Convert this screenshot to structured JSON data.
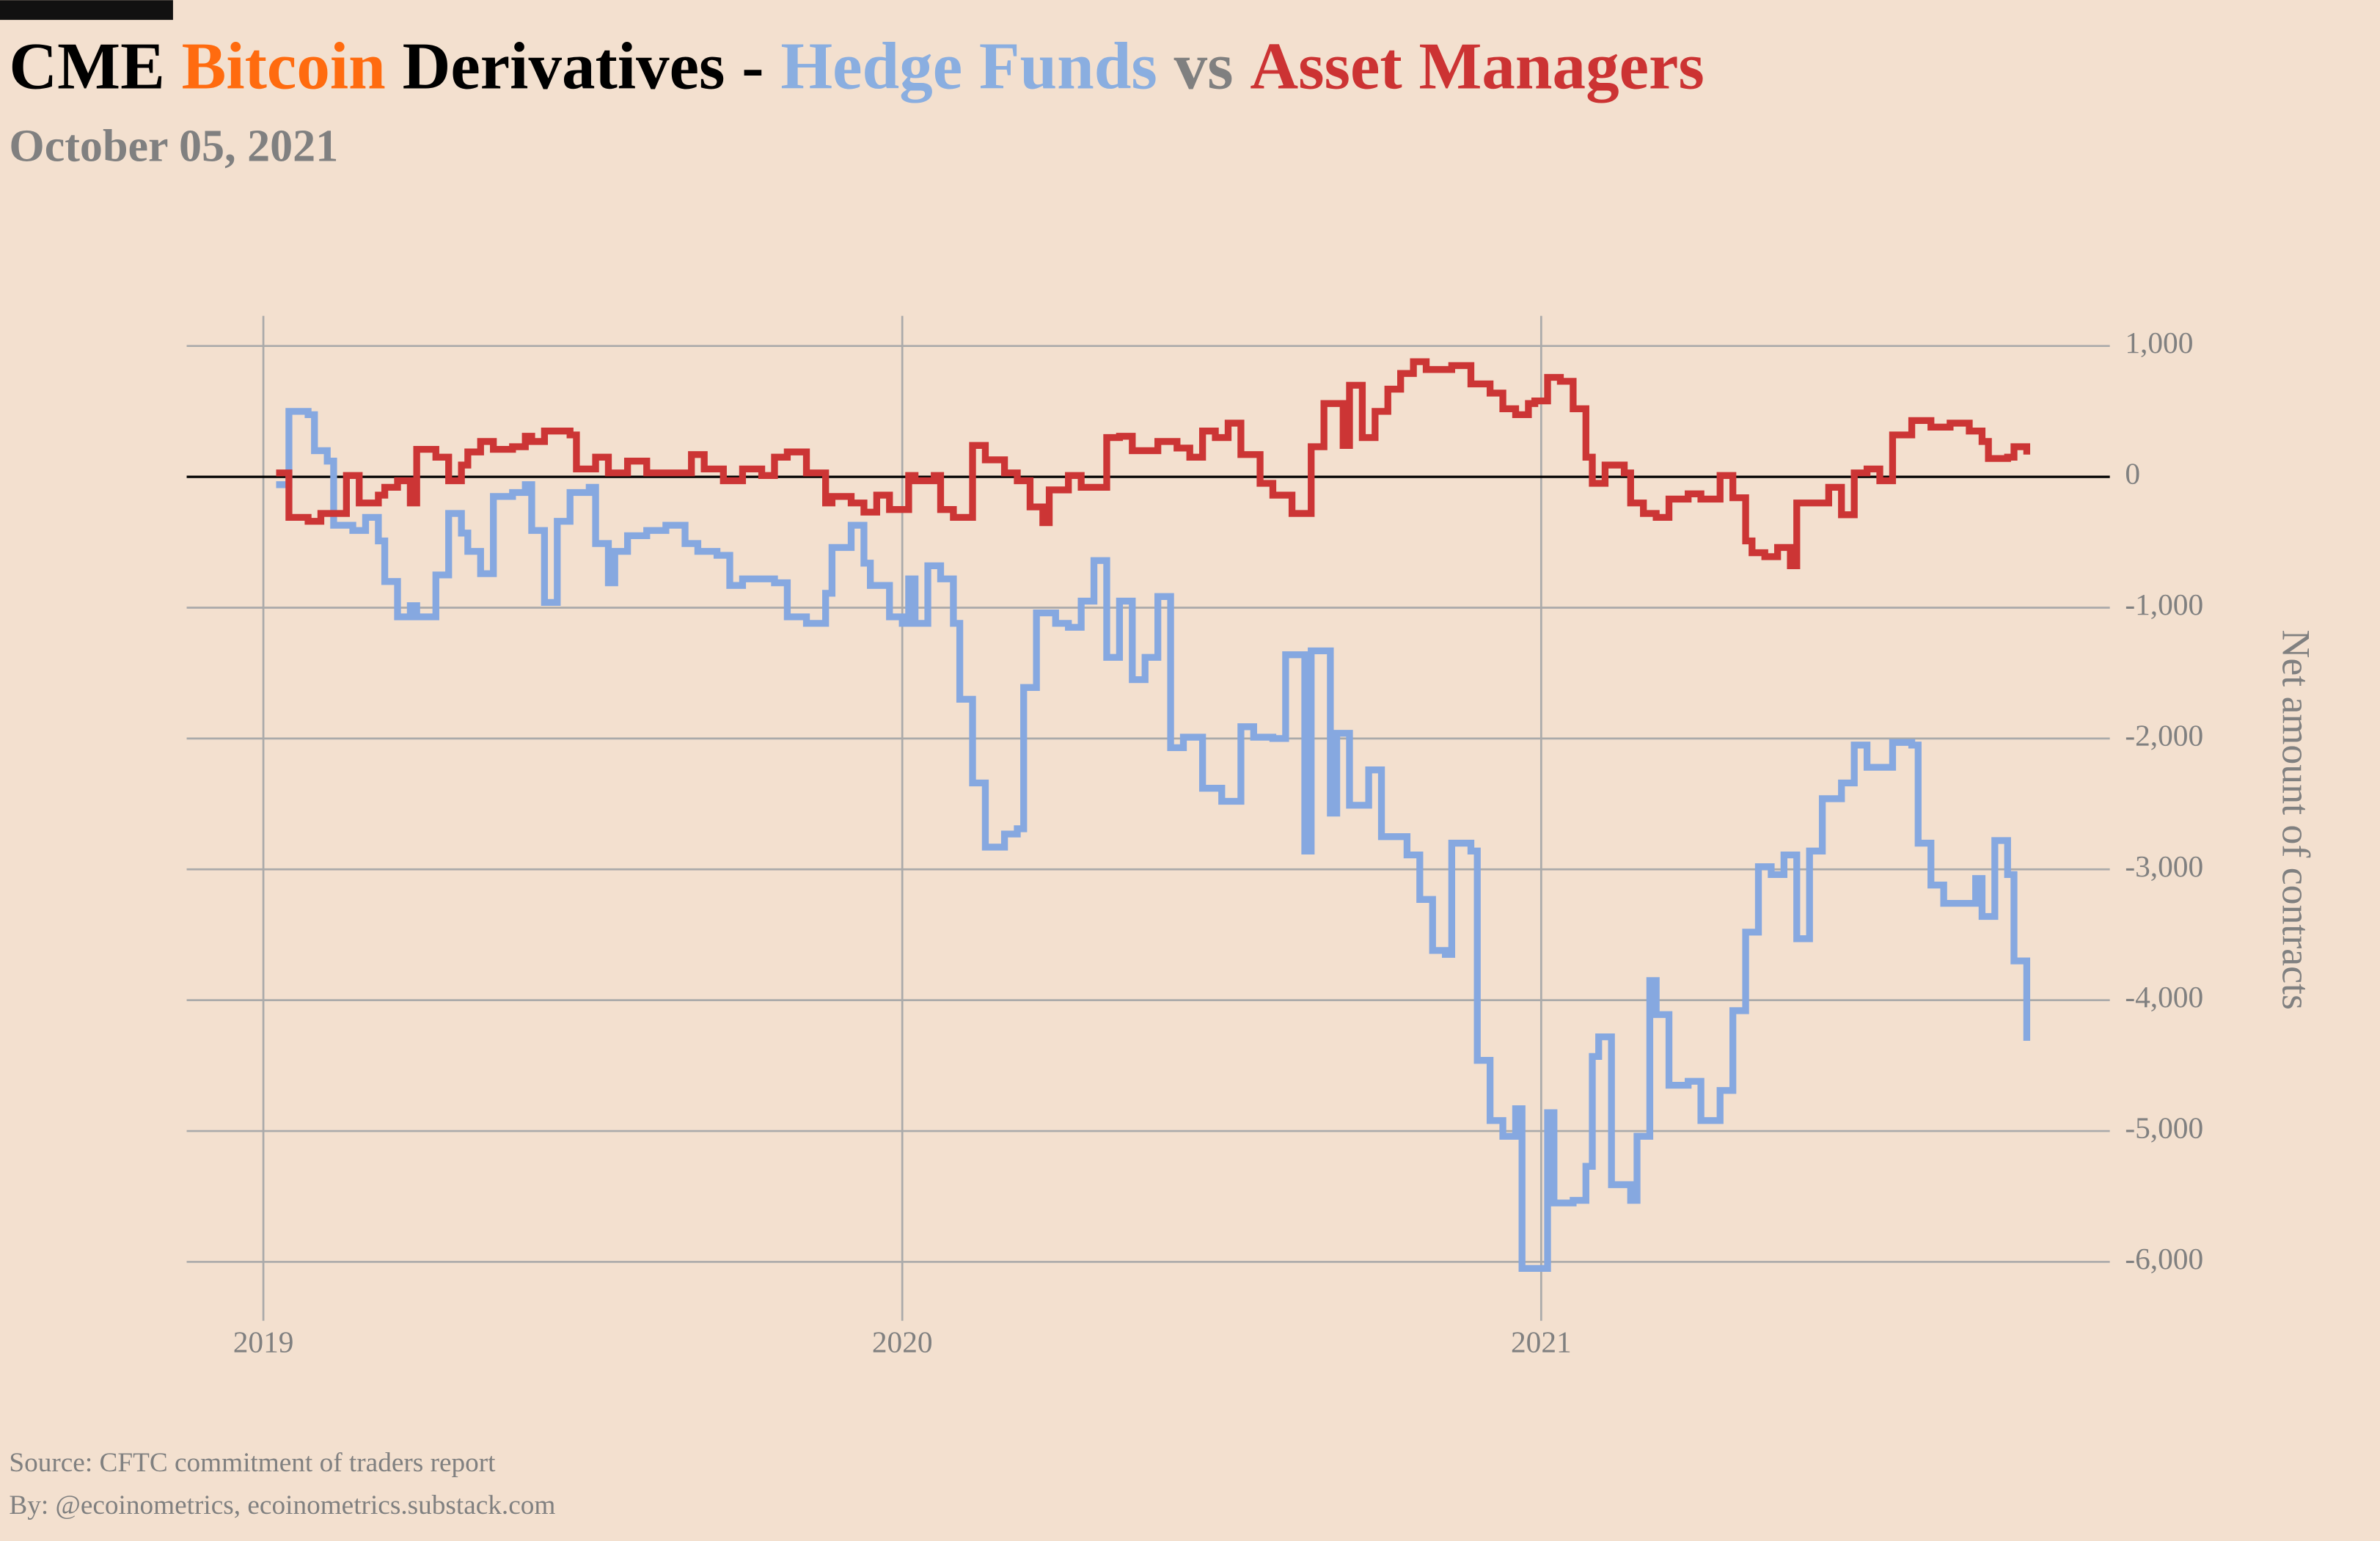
{
  "chart_data": {
    "type": "line",
    "title": [
      {
        "text": "CME",
        "color": "#000000"
      },
      {
        "text": "Bitcoin",
        "color": "#ff6b0f"
      },
      {
        "text": "Derivatives -",
        "color": "#000000"
      },
      {
        "text": "Hedge Funds",
        "color": "#8aaee0"
      },
      {
        "text": "vs",
        "color": "#808080"
      },
      {
        "text": "Asset Managers",
        "color": "#cc3333"
      }
    ],
    "subtitle": "October 05, 2021",
    "y_label": "Net amount of contracts",
    "source": "Source: CFTC commitment of traders report",
    "byline": "By: @ecoinometrics, ecoinometrics.substack.com",
    "step": true,
    "grid": true,
    "xlim": [
      2018.88,
      2021.89
    ],
    "xticks": [
      2019,
      2020,
      2021
    ],
    "ylim": [
      -6450,
      1230
    ],
    "yticks": [
      {
        "value": 1000,
        "label": "1,000"
      },
      0,
      {
        "value": -1000,
        "label": "-1,000"
      },
      {
        "value": -2000,
        "label": "-2,000"
      },
      {
        "value": -3000,
        "label": "-3,000"
      },
      {
        "value": -4000,
        "label": "-4,000"
      },
      {
        "value": -5000,
        "label": "-5,000"
      },
      {
        "value": -6000,
        "label": "-6,000"
      }
    ],
    "series": [
      {
        "name": "Hedge Funds",
        "color": "#86a8e0",
        "x": [
          2019.02,
          2019.04,
          2019.07,
          2019.08,
          2019.1,
          2019.11,
          2019.14,
          2019.16,
          2019.18,
          2019.19,
          2019.21,
          2019.23,
          2019.24,
          2019.27,
          2019.29,
          2019.31,
          2019.32,
          2019.34,
          2019.36,
          2019.39,
          2019.41,
          2019.42,
          2019.44,
          2019.46,
          2019.48,
          2019.51,
          2019.52,
          2019.54,
          2019.55,
          2019.57,
          2019.6,
          2019.63,
          2019.66,
          2019.68,
          2019.71,
          2019.73,
          2019.75,
          2019.8,
          2019.82,
          2019.85,
          2019.88,
          2019.89,
          2019.92,
          2019.94,
          2019.95,
          2019.98,
          2020.0,
          2020.01,
          2020.02,
          2020.04,
          2020.06,
          2020.08,
          2020.09,
          2020.11,
          2020.13,
          2020.16,
          2020.18,
          2020.19,
          2020.21,
          2020.24,
          2020.26,
          2020.28,
          2020.3,
          2020.32,
          2020.34,
          2020.36,
          2020.38,
          2020.4,
          2020.42,
          2020.44,
          2020.47,
          2020.5,
          2020.53,
          2020.55,
          2020.58,
          2020.6,
          2020.63,
          2020.64,
          2020.67,
          2020.68,
          2020.7,
          2020.73,
          2020.75,
          2020.79,
          2020.81,
          2020.83,
          2020.85,
          2020.86,
          2020.89,
          2020.9,
          2020.92,
          2020.94,
          2020.96,
          2020.97,
          2021.01,
          2021.02,
          2021.05,
          2021.07,
          2021.08,
          2021.09,
          2021.11,
          2021.14,
          2021.15,
          2021.17,
          2021.18,
          2021.2,
          2021.23,
          2021.25,
          2021.28,
          2021.3,
          2021.32,
          2021.34,
          2021.36,
          2021.38,
          2021.4,
          2021.42,
          2021.44,
          2021.47,
          2021.49,
          2021.51,
          2021.55,
          2021.58,
          2021.59,
          2021.61,
          2021.63,
          2021.68,
          2021.69,
          2021.71,
          2021.73,
          2021.74,
          2021.76
        ],
        "values": [
          -60,
          500,
          475,
          200,
          120,
          -370,
          -410,
          -310,
          -490,
          -800,
          -1070,
          -985,
          -1070,
          -750,
          -280,
          -430,
          -570,
          -740,
          -150,
          -120,
          -60,
          -410,
          -960,
          -340,
          -120,
          -80,
          -510,
          -810,
          -570,
          -450,
          -410,
          -370,
          -510,
          -570,
          -600,
          -830,
          -780,
          -810,
          -1070,
          -1120,
          -890,
          -540,
          -370,
          -660,
          -830,
          -1070,
          -1120,
          -780,
          -1120,
          -680,
          -780,
          -1120,
          -1700,
          -2340,
          -2830,
          -2730,
          -2690,
          -1610,
          -1040,
          -1120,
          -1150,
          -950,
          -640,
          -1380,
          -950,
          -1550,
          -1380,
          -915,
          -2070,
          -1990,
          -2380,
          -2480,
          -1910,
          -1990,
          -2000,
          -1360,
          -2860,
          -1330,
          -2570,
          -1960,
          -2510,
          -2240,
          -2750,
          -2890,
          -3230,
          -3620,
          -3650,
          -2800,
          -2860,
          -4460,
          -4920,
          -5040,
          -4830,
          -6050,
          -4860,
          -5550,
          -5530,
          -5270,
          -4430,
          -4280,
          -5410,
          -5530,
          -5040,
          -3850,
          -4110,
          -4650,
          -4620,
          -4920,
          -4690,
          -4080,
          -3480,
          -2980,
          -3040,
          -2890,
          -3530,
          -2860,
          -2460,
          -2340,
          -2050,
          -2220,
          -2030,
          -2050,
          -2800,
          -3120,
          -3260,
          -3070,
          -3360,
          -2780,
          -3040,
          -3700,
          -4310
        ]
      },
      {
        "name": "Asset Managers",
        "color": "#cc3535",
        "x": [
          2019.02,
          2019.04,
          2019.07,
          2019.09,
          2019.13,
          2019.15,
          2019.18,
          2019.19,
          2019.21,
          2019.23,
          2019.24,
          2019.27,
          2019.29,
          2019.31,
          2019.32,
          2019.34,
          2019.36,
          2019.39,
          2019.41,
          2019.42,
          2019.44,
          2019.48,
          2019.49,
          2019.52,
          2019.54,
          2019.57,
          2019.6,
          2019.67,
          2019.69,
          2019.72,
          2019.75,
          2019.78,
          2019.8,
          2019.82,
          2019.85,
          2019.88,
          2019.89,
          2019.92,
          2019.94,
          2019.96,
          2019.98,
          2020.01,
          2020.02,
          2020.05,
          2020.06,
          2020.08,
          2020.11,
          2020.13,
          2020.16,
          2020.18,
          2020.2,
          2020.22,
          2020.23,
          2020.26,
          2020.28,
          2020.32,
          2020.34,
          2020.36,
          2020.4,
          2020.43,
          2020.45,
          2020.47,
          2020.49,
          2020.51,
          2020.53,
          2020.56,
          2020.58,
          2020.61,
          2020.64,
          2020.66,
          2020.69,
          2020.7,
          2020.72,
          2020.74,
          2020.76,
          2020.78,
          2020.8,
          2020.82,
          2020.86,
          2020.89,
          2020.92,
          2020.94,
          2020.96,
          2020.98,
          2020.99,
          2021.01,
          2021.03,
          2021.05,
          2021.07,
          2021.08,
          2021.1,
          2021.13,
          2021.14,
          2021.16,
          2021.18,
          2021.2,
          2021.23,
          2021.25,
          2021.28,
          2021.3,
          2021.32,
          2021.33,
          2021.35,
          2021.37,
          2021.39,
          2021.4,
          2021.45,
          2021.47,
          2021.49,
          2021.51,
          2021.53,
          2021.55,
          2021.58,
          2021.61,
          2021.64,
          2021.67,
          2021.69,
          2021.7,
          2021.73,
          2021.74,
          2021.76
        ],
        "values": [
          30,
          -310,
          -340,
          -280,
          10,
          -200,
          -140,
          -80,
          -30,
          -200,
          210,
          150,
          -30,
          90,
          190,
          270,
          210,
          230,
          310,
          270,
          350,
          320,
          60,
          150,
          30,
          120,
          30,
          170,
          60,
          -30,
          60,
          10,
          150,
          190,
          30,
          -200,
          -150,
          -200,
          -270,
          -140,
          -250,
          10,
          -30,
          10,
          -250,
          -310,
          240,
          130,
          30,
          -30,
          -230,
          -350,
          -100,
          10,
          -80,
          300,
          310,
          200,
          270,
          220,
          150,
          350,
          300,
          410,
          170,
          -50,
          -140,
          -280,
          230,
          560,
          240,
          700,
          300,
          500,
          670,
          790,
          880,
          820,
          850,
          710,
          640,
          520,
          475,
          560,
          580,
          760,
          730,
          520,
          150,
          -50,
          90,
          30,
          -200,
          -280,
          -310,
          -170,
          -130,
          -170,
          10,
          -160,
          -490,
          -580,
          -610,
          -540,
          -680,
          -200,
          -80,
          -290,
          30,
          60,
          -30,
          320,
          430,
          380,
          410,
          350,
          270,
          140,
          150,
          230,
          170
        ]
      }
    ]
  }
}
